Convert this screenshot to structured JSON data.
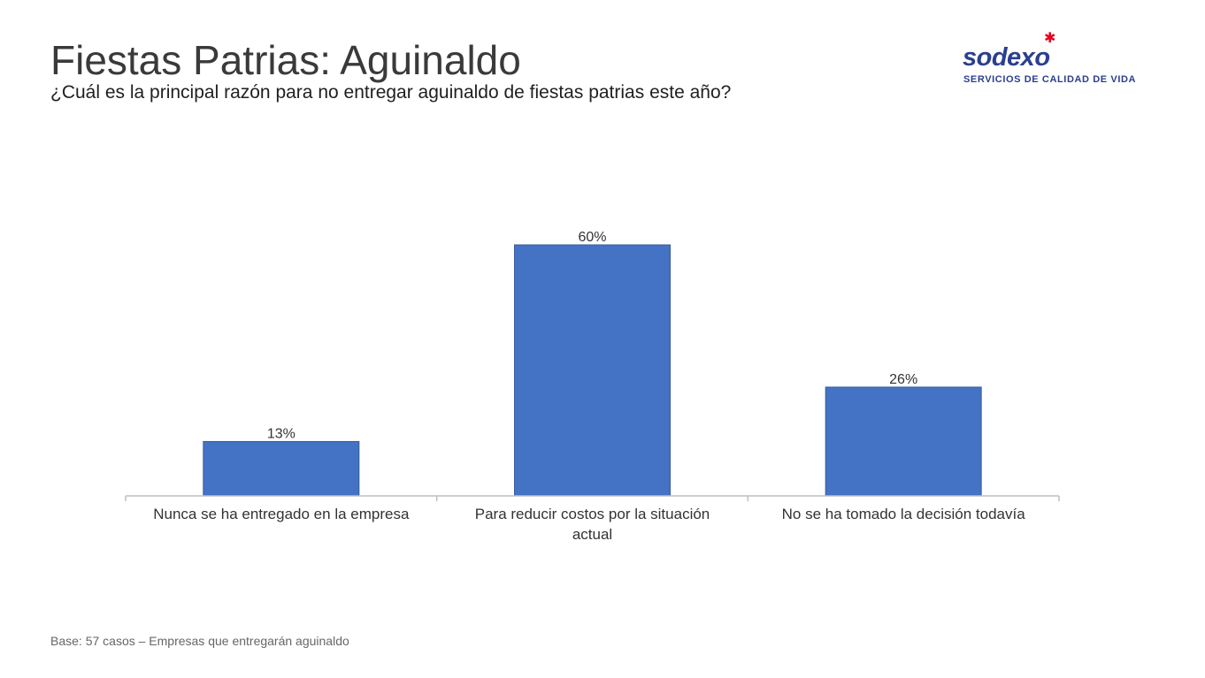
{
  "header": {
    "title": "Fiestas Patrias: Aguinaldo",
    "subtitle": "¿Cuál es la principal razón para no entregar aguinaldo de fiestas patrias este año?"
  },
  "logo": {
    "brand": "sodexo",
    "tagline": "SERVICIOS DE CALIDAD DE VIDA",
    "brand_color": "#2a3f8f",
    "star_color": "#e2001a"
  },
  "chart_data": {
    "type": "bar",
    "categories": [
      [
        "Nunca se ha entregado en la empresa"
      ],
      [
        "Para reducir costos por la situación",
        "actual"
      ],
      [
        "No se ha tomado la decisión todavía"
      ]
    ],
    "values": [
      13,
      60,
      26
    ],
    "data_labels": [
      "13%",
      "60%",
      "26%"
    ],
    "unit": "%",
    "ylim": [
      0,
      70
    ],
    "grid": false,
    "legend": "none",
    "bar_color": "#4472c4"
  },
  "footer": {
    "note": "Base: 57 casos – Empresas que entregarán aguinaldo"
  }
}
